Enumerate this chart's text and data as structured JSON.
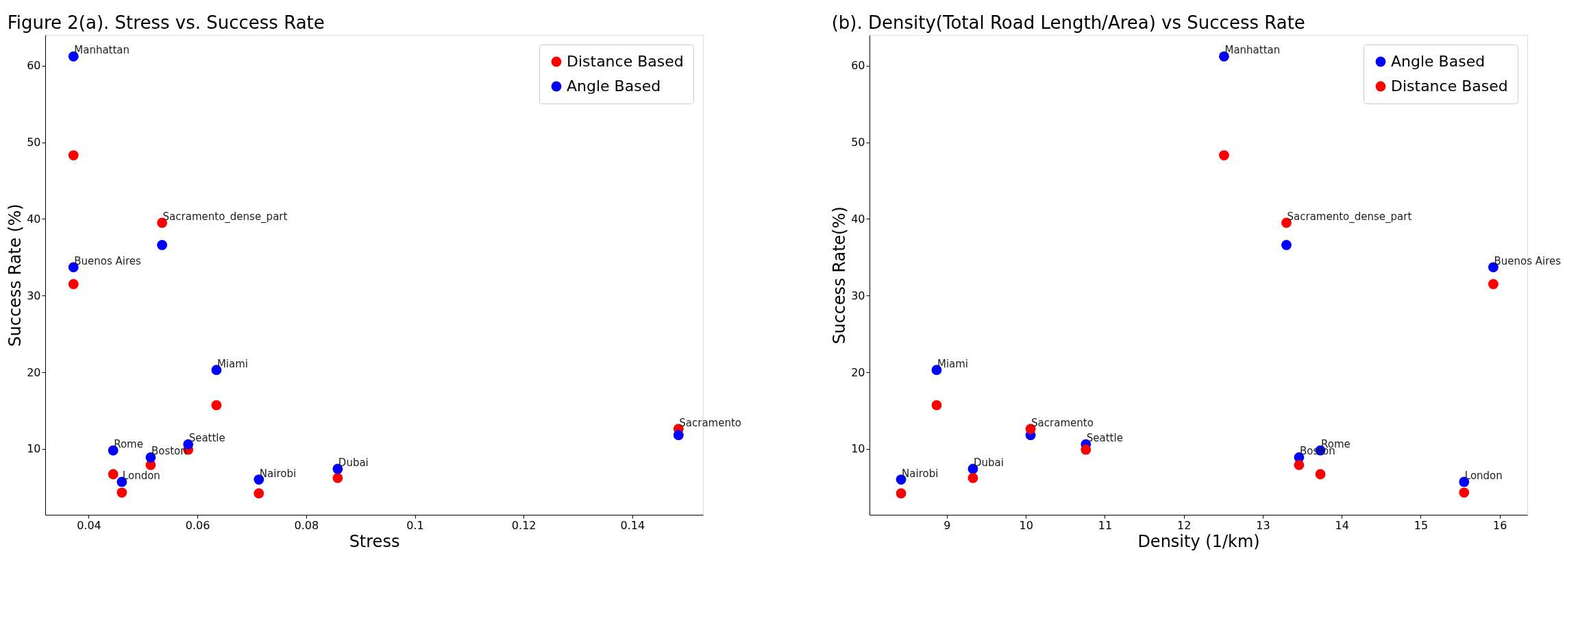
{
  "chart_data": [
    {
      "type": "scatter",
      "title": "Figure 2(a). Stress vs. Success Rate",
      "xlabel": "Stress",
      "ylabel": "Success Rate (%)",
      "xlim": [
        0.032,
        0.153
      ],
      "xticks": [
        0.04,
        0.06,
        0.08,
        0.1,
        0.12,
        0.14
      ],
      "ylim": [
        1.4,
        64
      ],
      "yticks": [
        10,
        20,
        30,
        40,
        50,
        60
      ],
      "grid": false,
      "legend": "top right",
      "marker": "circle",
      "series": [
        {
          "name": "Distance Based",
          "color": "#ff0000",
          "x": [
            0.0372,
            0.0535,
            0.0372,
            0.0635,
            0.1485,
            0.0583,
            0.0445,
            0.0514,
            0.0461,
            0.0713,
            0.0858
          ],
          "values": [
            48.3,
            39.5,
            31.5,
            15.7,
            12.6,
            9.9,
            6.7,
            7.9,
            4.3,
            4.2,
            6.2
          ]
        },
        {
          "name": "Angle Based",
          "color": "#0000ff",
          "x": [
            0.0372,
            0.0535,
            0.0372,
            0.0635,
            0.1485,
            0.0583,
            0.0445,
            0.0514,
            0.0461,
            0.0713,
            0.0858
          ],
          "values": [
            61.2,
            36.6,
            33.7,
            20.3,
            11.8,
            10.6,
            9.8,
            8.9,
            5.7,
            6.0,
            7.4
          ]
        }
      ],
      "annotations": [
        {
          "text": "Manhattan",
          "x": 0.0372,
          "y": 61.2
        },
        {
          "text": "Sacramento_dense_part",
          "x": 0.0535,
          "y": 39.5
        },
        {
          "text": "Buenos Aires",
          "x": 0.0372,
          "y": 33.7
        },
        {
          "text": "Miami",
          "x": 0.0635,
          "y": 20.3
        },
        {
          "text": "Sacramento",
          "x": 0.1485,
          "y": 12.6
        },
        {
          "text": "Seattle",
          "x": 0.0583,
          "y": 10.6
        },
        {
          "text": "Rome",
          "x": 0.0445,
          "y": 9.8
        },
        {
          "text": "Boston",
          "x": 0.0514,
          "y": 8.9
        },
        {
          "text": "London",
          "x": 0.0461,
          "y": 5.7
        },
        {
          "text": "Nairobi",
          "x": 0.0713,
          "y": 6.0
        },
        {
          "text": "Dubai",
          "x": 0.0858,
          "y": 7.4
        }
      ]
    },
    {
      "type": "scatter",
      "title": "(b). Density(Total Road Length/Area) vs Success Rate",
      "xlabel": "Density (1/km)",
      "ylabel": "Success Rate(%)",
      "xlim": [
        8.02,
        16.35
      ],
      "xticks": [
        9,
        10,
        11,
        12,
        13,
        14,
        15,
        16
      ],
      "ylim": [
        1.4,
        64
      ],
      "yticks": [
        10,
        20,
        30,
        40,
        50,
        60
      ],
      "grid": false,
      "legend": "top right",
      "marker": "circle",
      "series": [
        {
          "name": "Angle Based",
          "color": "#0000ff",
          "x": [
            12.51,
            13.3,
            15.92,
            8.87,
            10.06,
            10.76,
            13.73,
            13.46,
            15.55,
            8.42,
            9.33
          ],
          "values": [
            61.2,
            36.6,
            33.7,
            20.3,
            11.8,
            10.6,
            9.8,
            8.9,
            5.7,
            6.0,
            7.4
          ]
        },
        {
          "name": "Distance Based",
          "color": "#ff0000",
          "x": [
            12.51,
            13.3,
            15.92,
            8.87,
            10.06,
            10.76,
            13.73,
            13.46,
            15.55,
            8.42,
            9.33
          ],
          "values": [
            48.3,
            39.5,
            31.5,
            15.7,
            12.6,
            9.9,
            6.7,
            7.9,
            4.3,
            4.2,
            6.2
          ]
        }
      ],
      "annotations": [
        {
          "text": "Manhattan",
          "x": 12.51,
          "y": 61.2
        },
        {
          "text": "Sacramento_dense_part",
          "x": 13.3,
          "y": 39.5
        },
        {
          "text": "Buenos Aires",
          "x": 15.92,
          "y": 33.7
        },
        {
          "text": "Miami",
          "x": 8.87,
          "y": 20.3
        },
        {
          "text": "Sacramento",
          "x": 10.06,
          "y": 12.6
        },
        {
          "text": "Seattle",
          "x": 10.76,
          "y": 10.6
        },
        {
          "text": "Rome",
          "x": 13.73,
          "y": 9.8
        },
        {
          "text": "Boston",
          "x": 13.46,
          "y": 8.9
        },
        {
          "text": "London",
          "x": 15.55,
          "y": 5.7
        },
        {
          "text": "Nairobi",
          "x": 8.42,
          "y": 6.0
        },
        {
          "text": "Dubai",
          "x": 9.33,
          "y": 7.4
        }
      ]
    }
  ]
}
